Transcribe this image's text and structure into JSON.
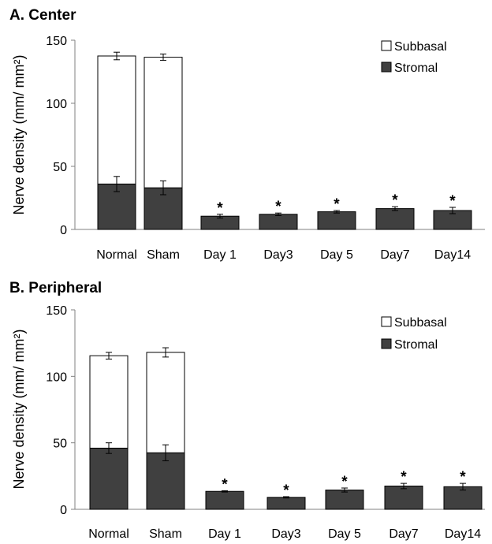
{
  "colors": {
    "stromal": "#404040",
    "subbasal": "#ffffff",
    "stroke": "#000000",
    "axis": "#808080"
  },
  "chart_data": [
    {
      "type": "bar",
      "stacked": true,
      "title": "A. Center",
      "ylabel": "Nerve density (mm/ mm²)",
      "ylim": [
        0,
        150
      ],
      "yticks": [
        0,
        50,
        100,
        150
      ],
      "categories": [
        "Normal",
        "Sham",
        "Day 1",
        "Day3",
        "Day 5",
        "Day7",
        "Day14"
      ],
      "legend_position": "top-right",
      "legend": [
        "Subbasal",
        "Stromal"
      ],
      "series": [
        {
          "name": "Stromal",
          "values": [
            36,
            33,
            10.5,
            12,
            14,
            16.5,
            15
          ],
          "errors": [
            6,
            5.5,
            1.5,
            1,
            1,
            1.5,
            2.5
          ]
        },
        {
          "name": "Subbasal",
          "values": [
            101.5,
            103.5,
            0,
            0,
            0,
            0,
            0
          ],
          "errors": [
            3,
            2.5,
            0,
            0,
            0,
            0,
            0
          ]
        }
      ],
      "significance": [
        "",
        "",
        "*",
        "*",
        "*",
        "*",
        "*"
      ]
    },
    {
      "type": "bar",
      "stacked": true,
      "title": "B. Peripheral",
      "ylabel": "Nerve density (mm/ mm²)",
      "ylim": [
        0,
        150
      ],
      "yticks": [
        0,
        50,
        100,
        150
      ],
      "categories": [
        "Normal",
        "Sham",
        "Day 1",
        "Day3",
        "Day 5",
        "Day7",
        "Day14"
      ],
      "legend_position": "top-right",
      "legend": [
        "Subbasal",
        "Stromal"
      ],
      "series": [
        {
          "name": "Stromal",
          "values": [
            46,
            42.5,
            13.5,
            9,
            14.5,
            17.5,
            17
          ],
          "errors": [
            4,
            6,
            0.5,
            0.5,
            1.5,
            2,
            2.5
          ]
        },
        {
          "name": "Subbasal",
          "values": [
            69.5,
            75.5,
            0,
            0,
            0,
            0,
            0
          ],
          "errors": [
            2.5,
            3.5,
            0,
            0,
            0,
            0,
            0
          ]
        }
      ],
      "significance": [
        "",
        "",
        "*",
        "*",
        "*",
        "*",
        "*"
      ]
    }
  ]
}
